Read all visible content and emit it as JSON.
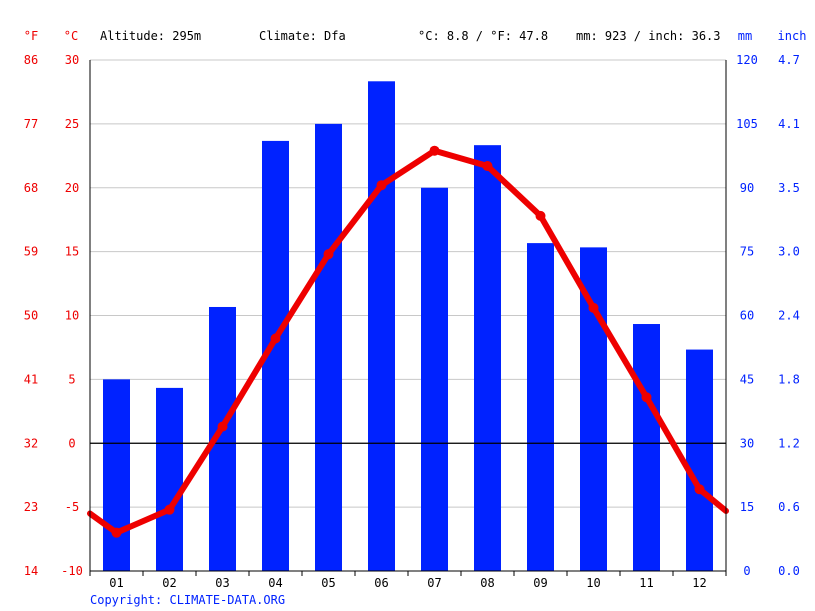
{
  "header": {
    "unit_f": "°F",
    "unit_c": "°C",
    "altitude": "Altitude: 295m",
    "climate": "Climate: Dfa",
    "avg_temp": "°C: 8.8 / °F: 47.8",
    "precip_total": "mm: 923 / inch: 36.3",
    "unit_mm": "mm",
    "unit_inch": "inch"
  },
  "copyright": "Copyright: CLIMATE-DATA.ORG",
  "colors": {
    "temperature": "#ee0000",
    "precipitation": "#0022ff",
    "grid": "#c8c8c8",
    "zero_line": "#000000"
  },
  "chart_data": {
    "type": "bar",
    "categories": [
      "01",
      "02",
      "03",
      "04",
      "05",
      "06",
      "07",
      "08",
      "09",
      "10",
      "11",
      "12"
    ],
    "series": [
      {
        "type": "bar",
        "axis": "right",
        "values": [
          45,
          43,
          62,
          101,
          105,
          115,
          90,
          100,
          77,
          76,
          58,
          52
        ]
      },
      {
        "type": "line",
        "axis": "left",
        "values": [
          -7,
          -5.2,
          1.3,
          8.2,
          14.8,
          20.2,
          22.9,
          21.7,
          17.8,
          10.6,
          3.6,
          -3.6
        ]
      }
    ],
    "y_left_c": {
      "range": [
        -10,
        30
      ],
      "ticks": [
        "-10",
        "-5",
        "0",
        "5",
        "10",
        "15",
        "20",
        "25",
        "30"
      ]
    },
    "y_left_f": {
      "ticks": [
        "14",
        "23",
        "32",
        "41",
        "50",
        "59",
        "68",
        "77",
        "86"
      ]
    },
    "y_right_mm": {
      "range": [
        0,
        120
      ],
      "ticks": [
        "0",
        "15",
        "30",
        "45",
        "60",
        "75",
        "90",
        "105",
        "120"
      ]
    },
    "y_right_inch": {
      "ticks": [
        "0.0",
        "0.6",
        "1.2",
        "1.8",
        "2.4",
        "3.0",
        "3.5",
        "4.1",
        "4.7"
      ]
    },
    "temp_start": -5.5,
    "temp_end": -5.3,
    "grid": true
  }
}
